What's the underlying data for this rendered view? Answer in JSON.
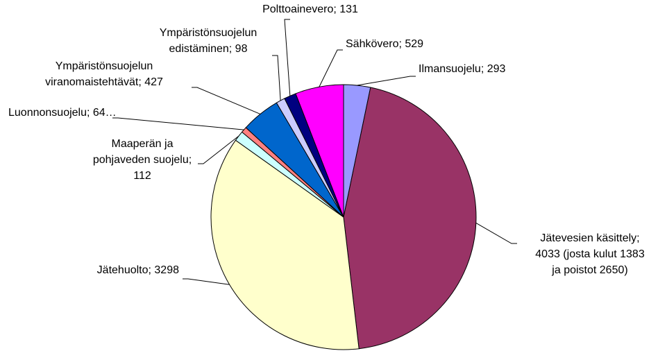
{
  "chart_data": {
    "type": "pie",
    "categories": [
      "Ilmansuojelu; 293",
      "Jätevesien käsittely;\n4033 (josta kulut 1383\nja poistot 2650)",
      "Jätehuolto; 3298",
      "Maaperän ja\npohjaveden suojelu;\n112",
      "Luonnonsuojelu; 64…",
      "Ympäristönsuojelun\nviranomaistehtävät; 427",
      "Ympäristönsuojelun\nedistäminen; 98",
      "Polttoainevero; 131",
      "Sähkövero; 529"
    ],
    "values": [
      293,
      4033,
      3298,
      112,
      64,
      427,
      98,
      131,
      529
    ],
    "colors": [
      "#9999ff",
      "#993366",
      "#ffffcc",
      "#ccffff",
      "#ff8080",
      "#0066cc",
      "#ccccff",
      "#000080",
      "#ff00ff"
    ]
  }
}
